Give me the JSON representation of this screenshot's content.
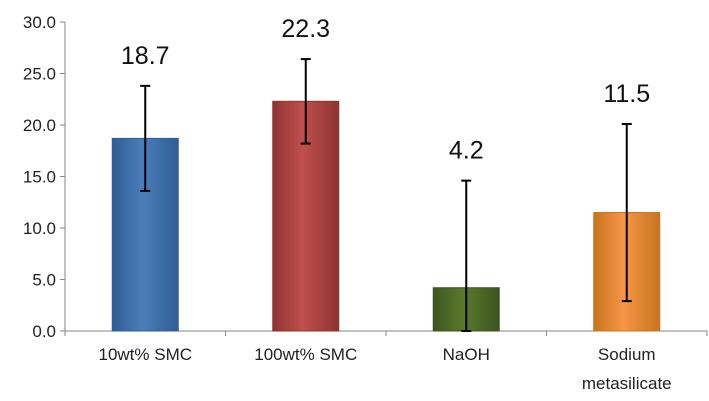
{
  "chart_data": {
    "type": "bar",
    "categories": [
      "10wt% SMC",
      "100wt% SMC",
      "NaOH",
      "Sodium metasilicate"
    ],
    "category_lines": [
      [
        "10wt% SMC"
      ],
      [
        "100wt% SMC"
      ],
      [
        "NaOH"
      ],
      [
        "Sodium",
        "metasilicate"
      ]
    ],
    "values": [
      18.7,
      22.3,
      4.2,
      11.5
    ],
    "data_labels": [
      "18.7",
      "22.3",
      "4.2",
      "11.5"
    ],
    "error_bars": [
      {
        "low": 13.6,
        "high": 23.8
      },
      {
        "low": 18.2,
        "high": 26.4
      },
      {
        "low": 0.0,
        "high": 14.6
      },
      {
        "low": 2.9,
        "high": 20.1
      }
    ],
    "colors": [
      "#4a7ebb",
      "#c0504d",
      "#5a7a2a",
      "#f79646"
    ],
    "edge_colors": [
      "#2f5d93",
      "#8e3331",
      "#3c5420",
      "#c7741f"
    ],
    "ylim": [
      0,
      30
    ],
    "yticks": [
      "0.0",
      "5.0",
      "10.0",
      "15.0",
      "20.0",
      "25.0",
      "30.0"
    ],
    "grid": false,
    "title": "",
    "xlabel": "",
    "ylabel": ""
  }
}
